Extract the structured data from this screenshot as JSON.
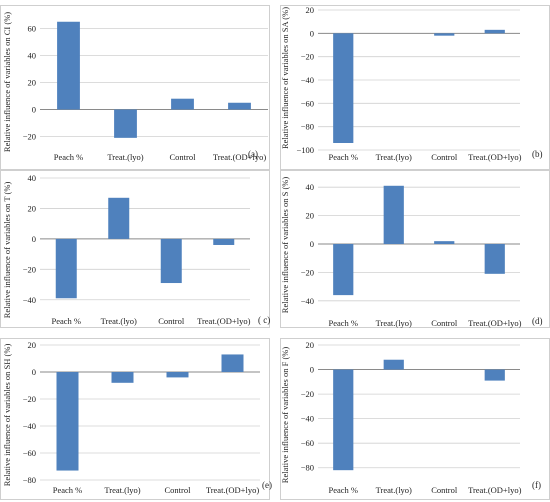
{
  "bar_color": "#4f81bd",
  "chart_data": [
    {
      "type": "bar",
      "panel_label": "(a)",
      "ylabel": "Relative influence of variables on CI (%)",
      "categories": [
        "Peach %",
        "Treat.(lyo)",
        "Control",
        "Treat.(OD+lyo)"
      ],
      "values": [
        65,
        -21,
        8,
        5
      ],
      "ylim": [
        -30,
        70
      ],
      "yticks": [
        -20,
        0,
        20,
        40,
        60
      ],
      "ytick_labels": [
        "−20",
        "0",
        "20",
        "40",
        "60"
      ],
      "grid": true
    },
    {
      "type": "bar",
      "panel_label": "(b)",
      "ylabel": "Relative influence of variables on SA (%)",
      "categories": [
        "Peach %",
        "Treat.(lyo)",
        "Control",
        "Treat.(OD+lyo)"
      ],
      "values": [
        -94,
        0,
        -2,
        3
      ],
      "ylim": [
        -100,
        20
      ],
      "yticks": [
        -100,
        -80,
        -60,
        -40,
        -20,
        0,
        20
      ],
      "ytick_labels": [
        "−100",
        "−80",
        "−60",
        "−40",
        "−20",
        "0",
        "20"
      ],
      "grid": true
    },
    {
      "type": "bar",
      "panel_label": "( c)",
      "ylabel": "Relative influence of variables on T (%)",
      "categories": [
        "Peach %",
        "Treat.(lyo)",
        "Control",
        "Treat.(OD+lyo)"
      ],
      "values": [
        -39,
        27,
        -29,
        -4
      ],
      "ylim": [
        -50,
        40
      ],
      "yticks": [
        -40,
        -20,
        0,
        20,
        40
      ],
      "ytick_labels": [
        "−40",
        "−20",
        "0",
        "20",
        "40"
      ],
      "grid": true
    },
    {
      "type": "bar",
      "panel_label": "(d)",
      "ylabel": "Relative influence of variables on S (%)",
      "categories": [
        "Peach %",
        "Treat.(lyo)",
        "Control",
        "Treat.(OD+lyo)"
      ],
      "values": [
        -36,
        41,
        2,
        -21
      ],
      "ylim": [
        -50,
        50
      ],
      "yticks": [
        -40,
        -20,
        0,
        20,
        40
      ],
      "ytick_labels": [
        "−40",
        "−20",
        "0",
        "20",
        "40"
      ],
      "grid": true
    },
    {
      "type": "bar",
      "panel_label": "(e)",
      "ylabel": "Relative influence of variables on SH (%)",
      "categories": [
        "Peach %",
        "Treat.(lyo)",
        "Control",
        "Treat.(OD+lyo)"
      ],
      "values": [
        -73,
        -8,
        -4,
        13
      ],
      "ylim": [
        -80,
        20
      ],
      "yticks": [
        -80,
        -60,
        -40,
        -20,
        0,
        20
      ],
      "ytick_labels": [
        "−80",
        "−60",
        "−40",
        "−20",
        "0",
        "20"
      ],
      "grid": true
    },
    {
      "type": "bar",
      "panel_label": "(f)",
      "ylabel": "Relative influence of variables on F (%)",
      "categories": [
        "Peach %",
        "Treat.(lyo)",
        "Control",
        "Treat.(OD+lyo)"
      ],
      "values": [
        -82,
        8,
        0,
        -9
      ],
      "ylim": [
        -90,
        20
      ],
      "yticks": [
        -80,
        -60,
        -40,
        -20,
        0,
        20
      ],
      "ytick_labels": [
        "−80",
        "−60",
        "−40",
        "−20",
        "0",
        "20"
      ],
      "grid": true
    }
  ]
}
